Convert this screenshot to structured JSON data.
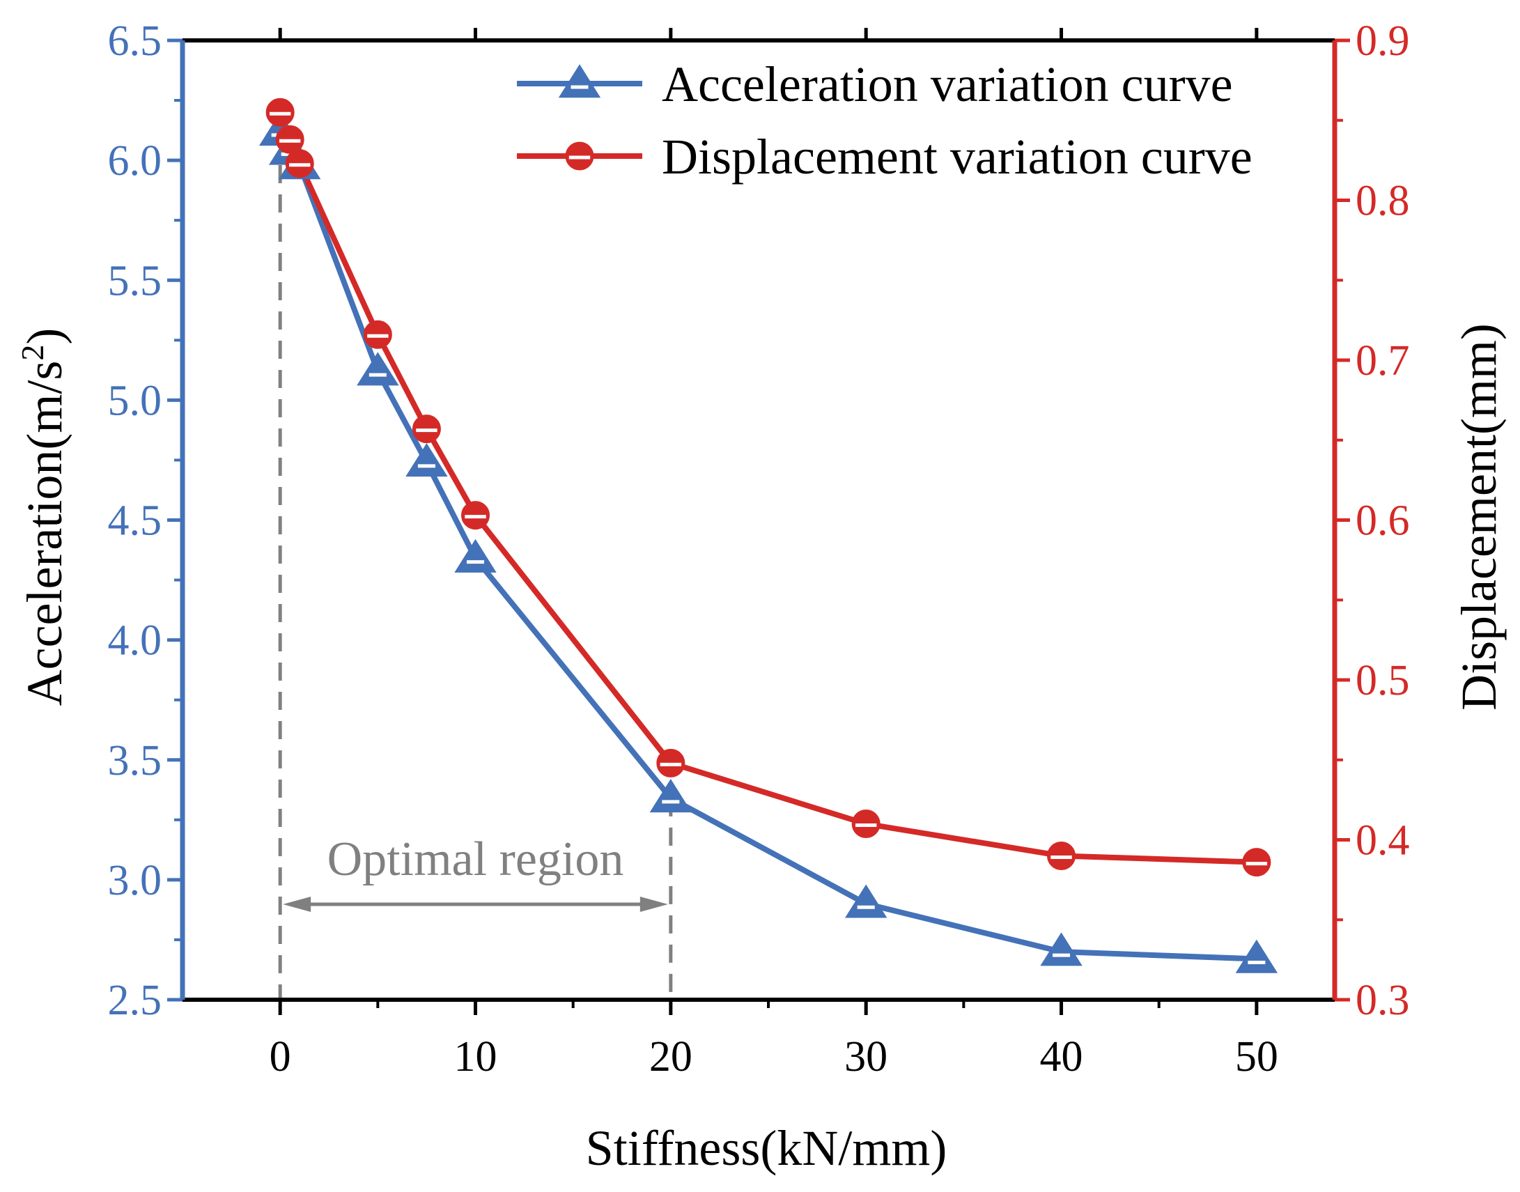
{
  "chart_data": {
    "type": "line",
    "title": "",
    "xlabel": "Stiffness(kN/mm)",
    "ylabel_left": {
      "base": "Acceleration(m/s",
      "sup": "2",
      "tail": ")"
    },
    "ylabel_right": "Displacement(mm)",
    "xlim": [
      -5,
      54
    ],
    "ylim_left": [
      2.5,
      6.5
    ],
    "ylim_right": [
      0.3,
      0.9
    ],
    "x_ticks": [
      "0",
      "10",
      "20",
      "30",
      "40",
      "50"
    ],
    "y_left_ticks": [
      "2.5",
      "3.0",
      "3.5",
      "4.0",
      "4.5",
      "5.0",
      "5.5",
      "6.0",
      "6.5"
    ],
    "y_right_ticks": [
      "0.3",
      "0.4",
      "0.5",
      "0.6",
      "0.7",
      "0.8",
      "0.9"
    ],
    "series": [
      {
        "name": "Acceleration variation curve",
        "axis": "left",
        "marker": "triangle",
        "color": "#4472b8",
        "x": [
          0,
          0.5,
          1,
          5,
          7.5,
          10,
          20,
          30,
          40,
          50
        ],
        "y": [
          6.12,
          6.04,
          5.98,
          5.12,
          4.74,
          4.34,
          3.34,
          2.9,
          2.7,
          2.67
        ]
      },
      {
        "name": "Displacement variation curve",
        "axis": "right",
        "marker": "half-circle",
        "color": "#d42a27",
        "x": [
          0,
          0.5,
          1,
          5,
          7.5,
          10,
          20,
          30,
          40,
          50
        ],
        "y": [
          0.855,
          0.838,
          0.823,
          0.716,
          0.657,
          0.603,
          0.448,
          0.41,
          0.39,
          0.386
        ]
      }
    ],
    "annotation": {
      "label": "Optimal region",
      "x_start": 0,
      "x_end": 20,
      "color": "#808080"
    },
    "legend_position": "top-right",
    "grid": false
  }
}
